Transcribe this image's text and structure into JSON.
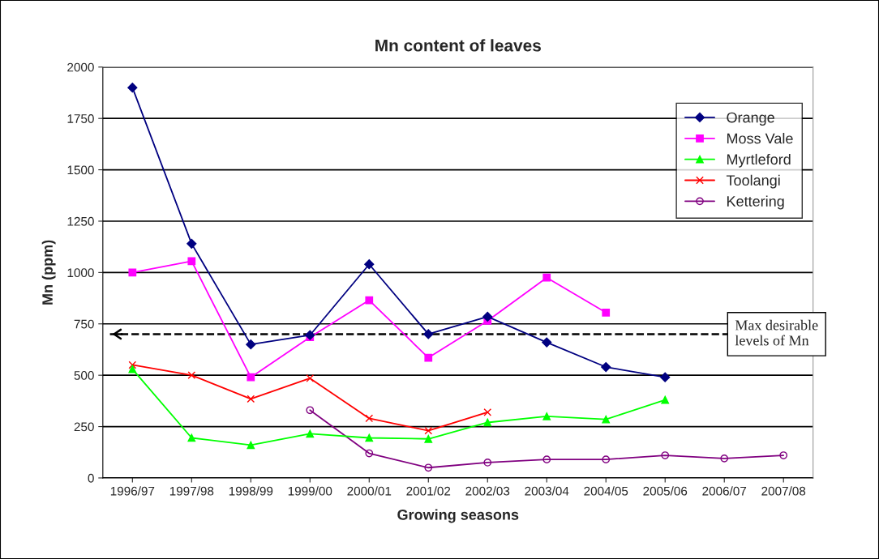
{
  "chart_data": {
    "type": "line",
    "title": "Mn content of leaves",
    "xlabel": "Growing seasons",
    "ylabel": "Mn (ppm)",
    "categories": [
      "1996/97",
      "1997/98",
      "1998/99",
      "1999/00",
      "2000/01",
      "2001/02",
      "2002/03",
      "2003/04",
      "2004/05",
      "2005/06",
      "2006/07",
      "2007/08"
    ],
    "series": [
      {
        "name": "Orange",
        "color": "#000080",
        "marker": "diamond",
        "values": [
          1900,
          1140,
          650,
          695,
          1040,
          700,
          785,
          660,
          540,
          490,
          null,
          null
        ]
      },
      {
        "name": "Moss Vale",
        "color": "#ff00ff",
        "marker": "square",
        "values": [
          1000,
          1055,
          490,
          685,
          865,
          585,
          765,
          975,
          805,
          null,
          null,
          null
        ]
      },
      {
        "name": "Myrtleford",
        "color": "#00ff00",
        "marker": "triangle",
        "values": [
          530,
          195,
          160,
          215,
          195,
          190,
          270,
          300,
          285,
          380,
          null,
          null
        ]
      },
      {
        "name": "Toolangi",
        "color": "#ff0000",
        "marker": "cross",
        "values": [
          550,
          500,
          385,
          485,
          290,
          230,
          320,
          null,
          null,
          null,
          null,
          null
        ]
      },
      {
        "name": "Kettering",
        "color": "#800080",
        "marker": "circle",
        "values": [
          null,
          null,
          null,
          330,
          120,
          50,
          75,
          90,
          90,
          110,
          95,
          110
        ]
      }
    ],
    "ylim": [
      0,
      2000
    ],
    "yticks": [
      0,
      250,
      500,
      750,
      1000,
      1250,
      1500,
      1750,
      2000
    ],
    "ref_lines": [
      {
        "axis": "y",
        "value": 700,
        "label": "Max desirable\nlevels of Mn",
        "color": "#000000",
        "line_style": "dashed"
      }
    ],
    "grid": "y",
    "legend": "top right",
    "line_style": "solid"
  }
}
